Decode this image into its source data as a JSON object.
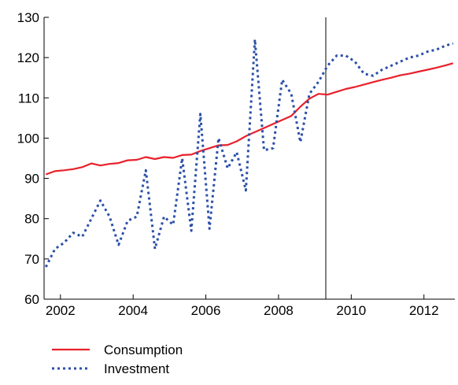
{
  "chart_data": {
    "type": "line",
    "ylim": [
      60,
      130
    ],
    "xlim": [
      2001.55,
      2012.85
    ],
    "y_ticks": [
      "60",
      "70",
      "80",
      "90",
      "100",
      "110",
      "120",
      "130"
    ],
    "x_ticks": [
      "2002",
      "2004",
      "2006",
      "2008",
      "2010",
      "2012"
    ],
    "grid": false,
    "legend_position": "bottom-left",
    "annotations": [
      {
        "type": "vertical-line",
        "x": 2009.3
      }
    ],
    "series": [
      {
        "name": "Consumption",
        "color": "#e8202a",
        "style": "solid",
        "x": [
          2001.6,
          2001.85,
          2002.1,
          2002.35,
          2002.6,
          2002.85,
          2003.1,
          2003.35,
          2003.6,
          2003.85,
          2004.1,
          2004.35,
          2004.6,
          2004.85,
          2005.1,
          2005.35,
          2005.6,
          2005.85,
          2006.1,
          2006.35,
          2006.6,
          2006.85,
          2007.1,
          2007.35,
          2007.6,
          2007.85,
          2008.1,
          2008.35,
          2008.6,
          2008.85,
          2009.1,
          2009.35,
          2009.6,
          2009.85,
          2010.1,
          2010.35,
          2010.6,
          2010.85,
          2011.1,
          2011.35,
          2011.6,
          2011.85,
          2012.1,
          2012.35,
          2012.6,
          2012.8
        ],
        "y": [
          91,
          91.8,
          92,
          92.3,
          92.8,
          93.7,
          93.2,
          93.6,
          93.8,
          94.5,
          94.6,
          95.3,
          94.8,
          95.3,
          95.1,
          95.8,
          95.9,
          96.8,
          97.5,
          98.2,
          98.3,
          99.2,
          100.5,
          101.5,
          102.5,
          103.5,
          104.5,
          105.5,
          107.8,
          109.8,
          111,
          110.8,
          111.5,
          112.2,
          112.7,
          113.3,
          113.9,
          114.5,
          115,
          115.6,
          116,
          116.5,
          117,
          117.5,
          118.1,
          118.6
        ]
      },
      {
        "name": "Investment",
        "color": "#2b4fa8",
        "style": "dotted",
        "x": [
          2001.6,
          2001.85,
          2002.1,
          2002.35,
          2002.6,
          2002.85,
          2003.1,
          2003.35,
          2003.6,
          2003.85,
          2004.1,
          2004.35,
          2004.6,
          2004.85,
          2005.1,
          2005.35,
          2005.6,
          2005.85,
          2006.1,
          2006.35,
          2006.6,
          2006.85,
          2007.1,
          2007.35,
          2007.6,
          2007.85,
          2008.1,
          2008.35,
          2008.6,
          2008.85,
          2009.1,
          2009.35,
          2009.6,
          2009.85,
          2010.1,
          2010.35,
          2010.6,
          2010.85,
          2011.1,
          2011.35,
          2011.6,
          2011.85,
          2012.1,
          2012.35,
          2012.6,
          2012.8
        ],
        "y": [
          68,
          72.5,
          74,
          76.5,
          75.5,
          80,
          84.5,
          80.5,
          73.5,
          79.5,
          80.5,
          92,
          72.5,
          80.5,
          78.5,
          95,
          77,
          106,
          77.5,
          100,
          92.5,
          96.5,
          87,
          124.5,
          97,
          97.5,
          114.5,
          111,
          99,
          111,
          114,
          118,
          120.5,
          120.5,
          119,
          116,
          115.5,
          117,
          118,
          119,
          120,
          120.5,
          121.5,
          122,
          123,
          123.5
        ]
      }
    ]
  }
}
